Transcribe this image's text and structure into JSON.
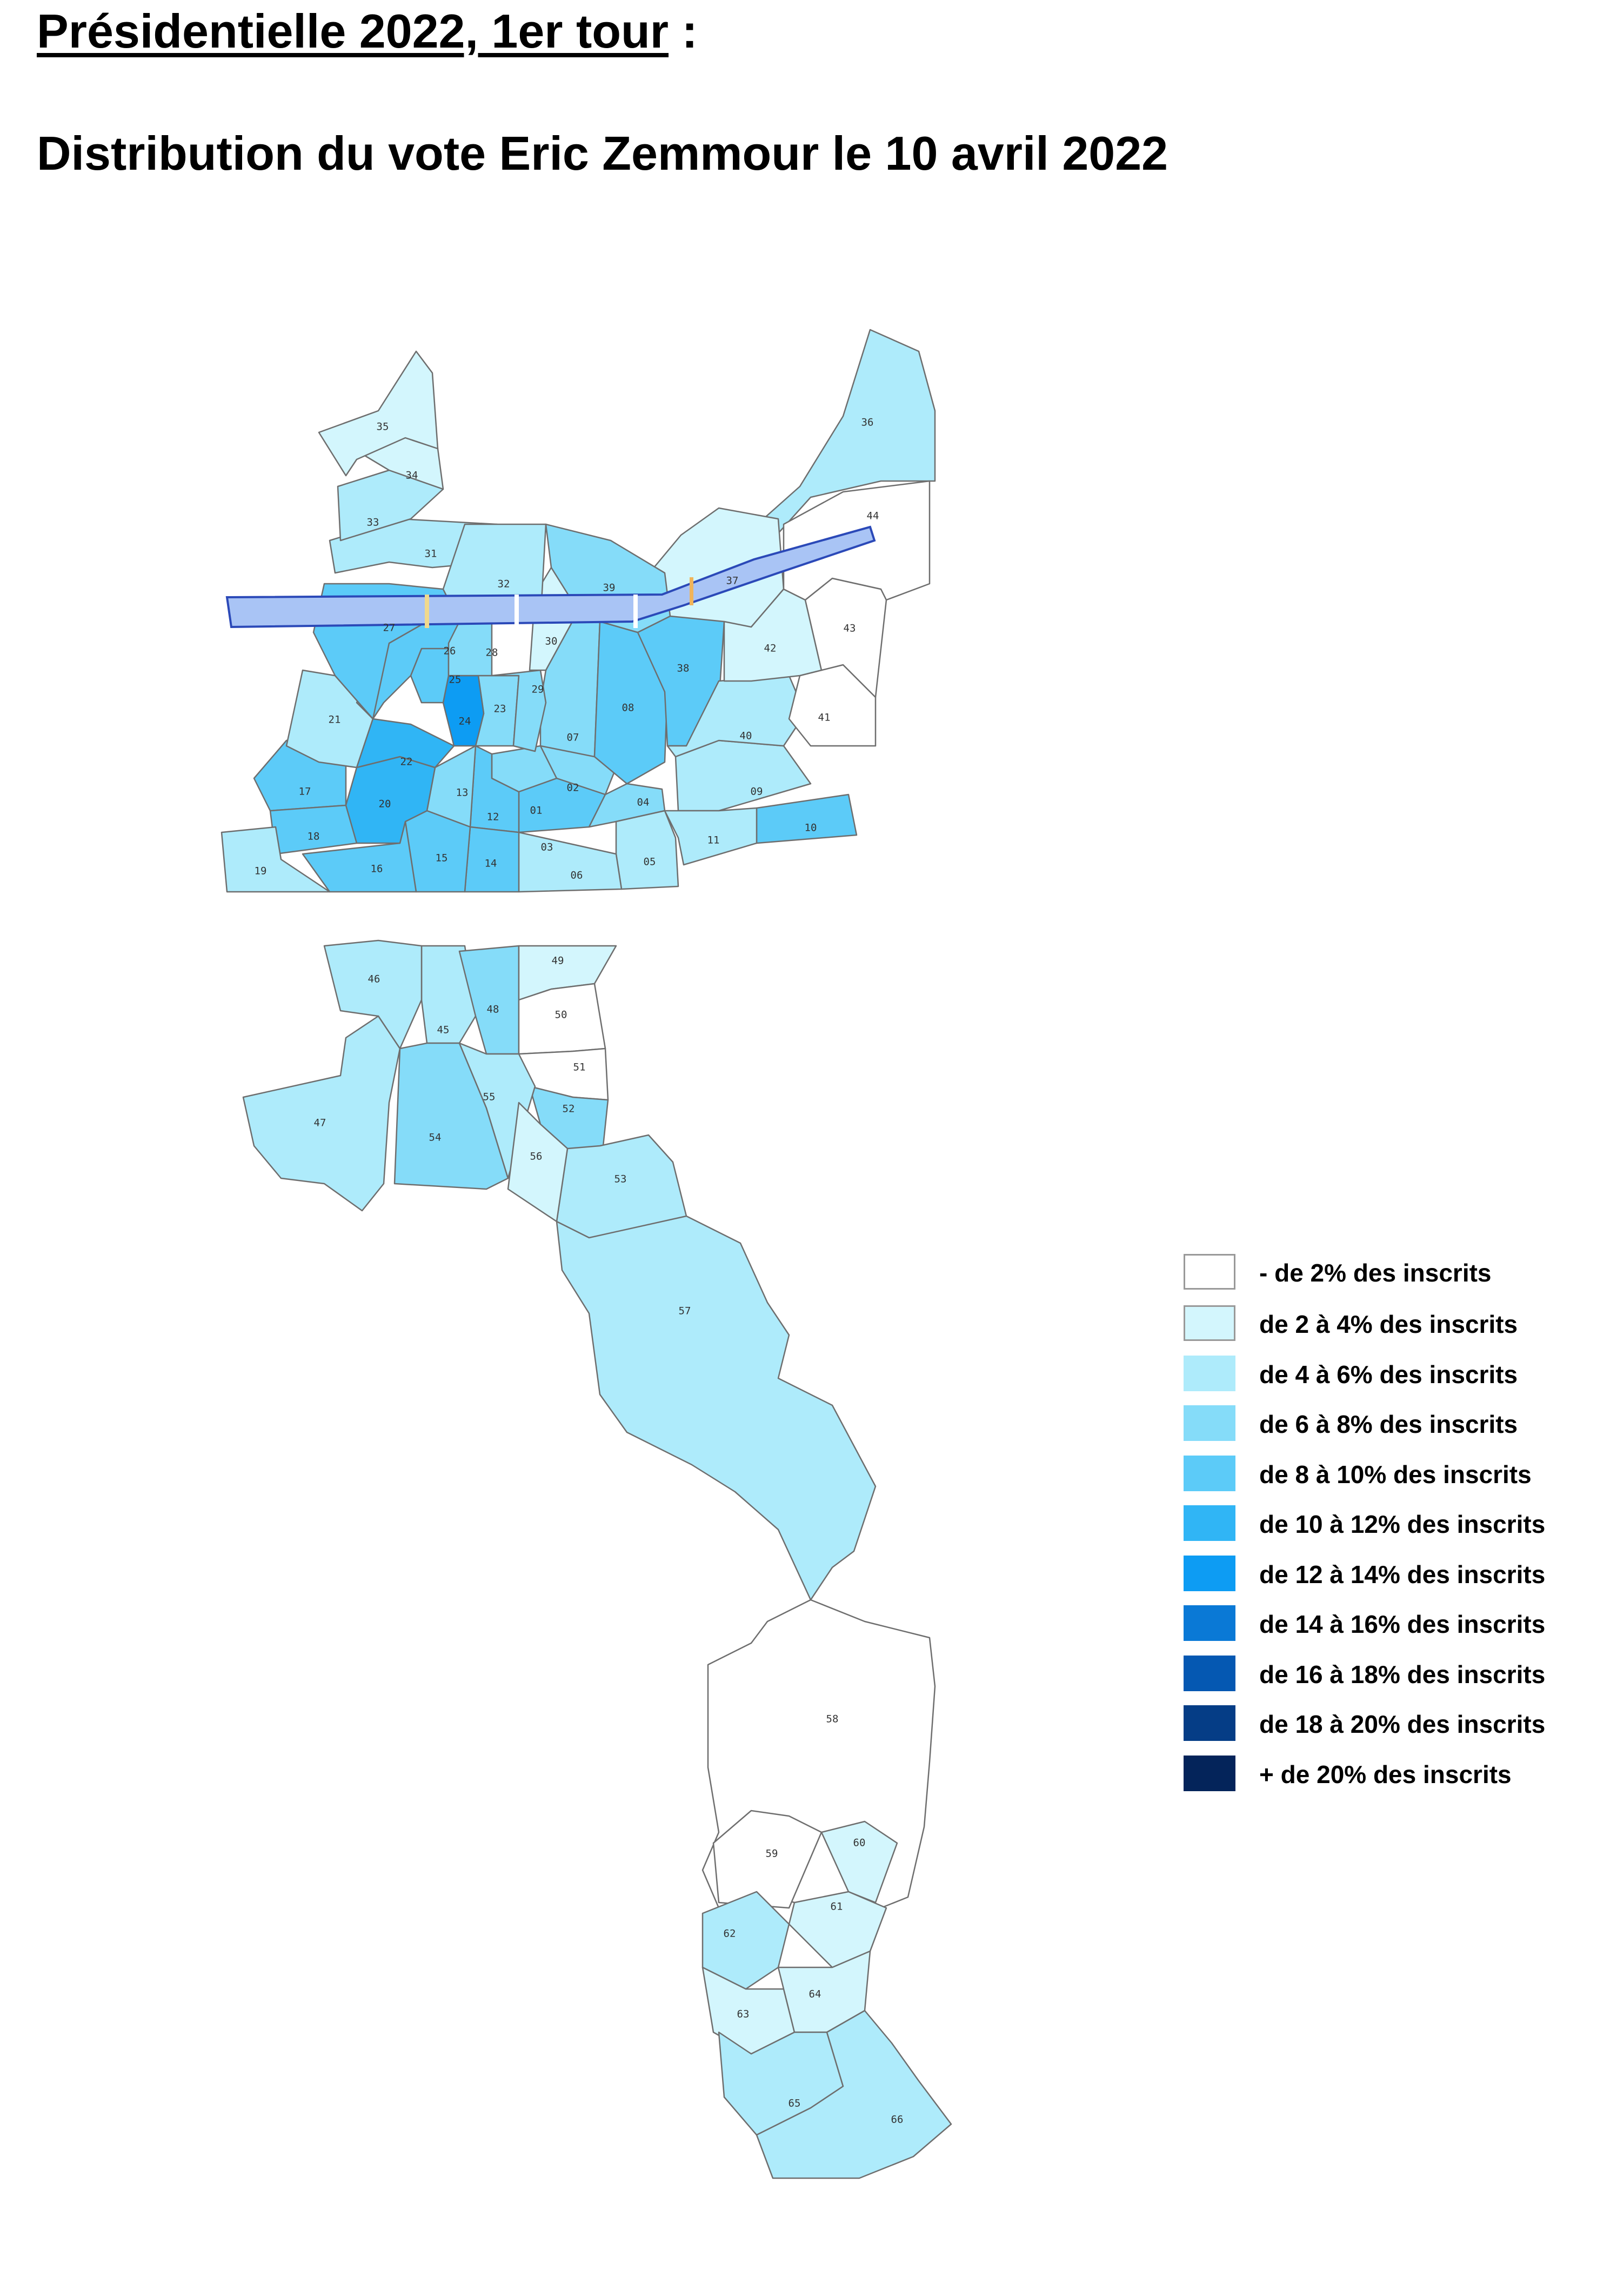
{
  "title_line1_main": "Présidentielle 2022, 1er tour",
  "title_line1_suffix": " :",
  "title_line2": "Distribution du vote Eric Zemmour le 10 avril 2022",
  "legend": [
    {
      "label": "- de 2% des inscrits",
      "color": "#ffffff"
    },
    {
      "label": "de 2 à 4% des inscrits",
      "color": "#d3f6fd"
    },
    {
      "label": "de 4 à 6% des inscrits",
      "color": "#aeebfb"
    },
    {
      "label": "de 6 à 8% des inscrits",
      "color": "#85dcf9"
    },
    {
      "label": "de 8 à 10% des inscrits",
      "color": "#5ccbf8"
    },
    {
      "label": "de 10 à 12% des inscrits",
      "color": "#30b5f5"
    },
    {
      "label": "de 12 à 14% des inscrits",
      "color": "#0d9cf3"
    },
    {
      "label": "de 14 à 16% des inscrits",
      "color": "#0a79d6"
    },
    {
      "label": "de 16 à 18% des inscrits",
      "color": "#0558b2"
    },
    {
      "label": "de 18 à 20% des inscrits",
      "color": "#053d86"
    },
    {
      "label": "+ de 20% des inscrits",
      "color": "#04245a"
    }
  ],
  "river_color": "#a9c4f5",
  "bureaux": [
    {
      "id": "01",
      "c": 3
    },
    {
      "id": "02",
      "c": 3
    },
    {
      "id": "03",
      "c": 4
    },
    {
      "id": "04",
      "c": 3
    },
    {
      "id": "05",
      "c": 2
    },
    {
      "id": "06",
      "c": 2
    },
    {
      "id": "07",
      "c": 3
    },
    {
      "id": "08",
      "c": 4
    },
    {
      "id": "09",
      "c": 2
    },
    {
      "id": "10",
      "c": 4
    },
    {
      "id": "11",
      "c": 2
    },
    {
      "id": "12",
      "c": 4
    },
    {
      "id": "13",
      "c": 3
    },
    {
      "id": "14",
      "c": 4
    },
    {
      "id": "15",
      "c": 4
    },
    {
      "id": "16",
      "c": 4
    },
    {
      "id": "17",
      "c": 4
    },
    {
      "id": "18",
      "c": 4
    },
    {
      "id": "19",
      "c": 2
    },
    {
      "id": "20",
      "c": 5
    },
    {
      "id": "21",
      "c": 2
    },
    {
      "id": "22",
      "c": 5
    },
    {
      "id": "23",
      "c": 3
    },
    {
      "id": "24",
      "c": 6
    },
    {
      "id": "25",
      "c": 4
    },
    {
      "id": "26",
      "c": 4
    },
    {
      "id": "27",
      "c": 4
    },
    {
      "id": "28",
      "c": 3
    },
    {
      "id": "29",
      "c": 3
    },
    {
      "id": "30",
      "c": 1
    },
    {
      "id": "31",
      "c": 2
    },
    {
      "id": "32",
      "c": 2
    },
    {
      "id": "33",
      "c": 2
    },
    {
      "id": "34",
      "c": 1
    },
    {
      "id": "35",
      "c": 1
    },
    {
      "id": "36",
      "c": 2
    },
    {
      "id": "37",
      "c": 1
    },
    {
      "id": "38",
      "c": 4
    },
    {
      "id": "39",
      "c": 3
    },
    {
      "id": "40",
      "c": 2
    },
    {
      "id": "41",
      "c": 0
    },
    {
      "id": "42",
      "c": 1
    },
    {
      "id": "43",
      "c": 0
    },
    {
      "id": "44",
      "c": 0
    },
    {
      "id": "45",
      "c": 2
    },
    {
      "id": "46",
      "c": 2
    },
    {
      "id": "47",
      "c": 2
    },
    {
      "id": "48",
      "c": 3
    },
    {
      "id": "49",
      "c": 1
    },
    {
      "id": "50",
      "c": 0
    },
    {
      "id": "51",
      "c": 0
    },
    {
      "id": "52",
      "c": 3
    },
    {
      "id": "53",
      "c": 2
    },
    {
      "id": "54",
      "c": 3
    },
    {
      "id": "55",
      "c": 2
    },
    {
      "id": "56",
      "c": 1
    },
    {
      "id": "57",
      "c": 2
    },
    {
      "id": "58",
      "c": 0
    },
    {
      "id": "59",
      "c": 0
    },
    {
      "id": "60",
      "c": 1
    },
    {
      "id": "61",
      "c": 1
    },
    {
      "id": "62",
      "c": 2
    },
    {
      "id": "63",
      "c": 1
    },
    {
      "id": "64",
      "c": 1
    },
    {
      "id": "65",
      "c": 2
    },
    {
      "id": "66",
      "c": 2
    }
  ]
}
